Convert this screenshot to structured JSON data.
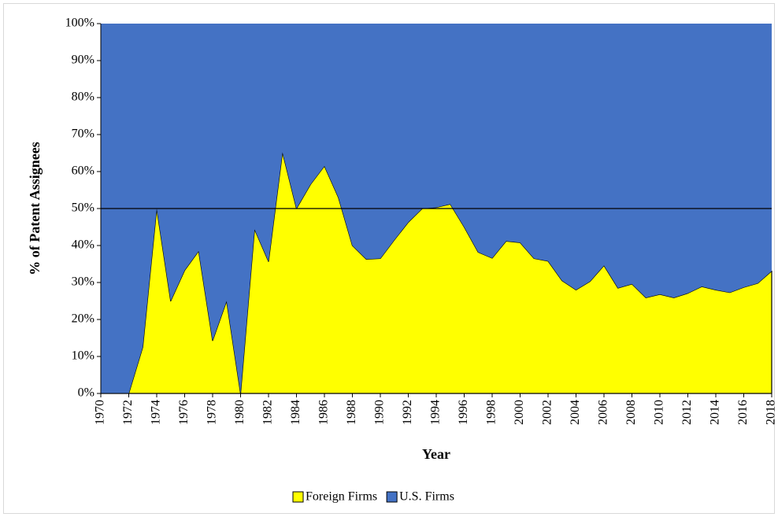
{
  "chart_data": {
    "type": "stacked_area",
    "x_label": "Year",
    "y_label": "% of Patent Assignees",
    "x": [
      1970,
      1971,
      1972,
      1973,
      1974,
      1975,
      1976,
      1977,
      1978,
      1979,
      1980,
      1981,
      1982,
      1983,
      1984,
      1985,
      1986,
      1987,
      1988,
      1989,
      1990,
      1991,
      1992,
      1993,
      1994,
      1995,
      1996,
      1997,
      1998,
      1999,
      2000,
      2001,
      2002,
      2003,
      2004,
      2005,
      2006,
      2007,
      2008,
      2009,
      2010,
      2011,
      2012,
      2013,
      2014,
      2015,
      2016,
      2017,
      2018
    ],
    "series": [
      {
        "name": "Foreign Firms",
        "color": "#ffff00",
        "values": [
          0,
          0,
          0,
          12.5,
          50,
          25,
          33.3,
          38.5,
          14.3,
          25,
          0,
          44.4,
          35.7,
          65.2,
          50,
          56.5,
          61.5,
          53,
          40,
          36.3,
          36.5,
          41.5,
          46.3,
          50,
          50.3,
          51.2,
          45,
          38.2,
          36.6,
          41.2,
          40.8,
          36.5,
          35.8,
          30.5,
          28,
          30.3,
          34.6,
          28.5,
          29.6,
          25.9,
          26.8,
          25.9,
          27.1,
          28.9,
          28,
          27.3,
          28.7,
          29.8,
          33.1
        ]
      },
      {
        "name": "U.S. Firms",
        "color": "#4472c4",
        "values": [
          100,
          100,
          100,
          87.5,
          50,
          75,
          66.7,
          61.5,
          85.7,
          75,
          100,
          55.6,
          64.3,
          34.8,
          50,
          43.5,
          38.5,
          47,
          60,
          63.7,
          63.5,
          58.5,
          53.7,
          50,
          49.7,
          48.8,
          55,
          61.8,
          63.4,
          58.8,
          59.2,
          63.5,
          64.2,
          69.5,
          72,
          69.7,
          65.4,
          71.5,
          70.4,
          74.1,
          73.2,
          74.1,
          72.9,
          71.1,
          72,
          72.7,
          71.3,
          70.2,
          66.9
        ]
      }
    ],
    "reference_line": 50,
    "xlim": [
      1970,
      2018
    ],
    "xticks": [
      1970,
      1972,
      1974,
      1976,
      1978,
      1980,
      1982,
      1984,
      1986,
      1988,
      1990,
      1992,
      1994,
      1996,
      1998,
      2000,
      2002,
      2004,
      2006,
      2008,
      2010,
      2012,
      2014,
      2016,
      2018
    ],
    "ylim": [
      0,
      100
    ],
    "yticks": [
      {
        "value": 0,
        "label": "0%"
      },
      {
        "value": 10,
        "label": "10%"
      },
      {
        "value": 20,
        "label": "20%"
      },
      {
        "value": 30,
        "label": "30%"
      },
      {
        "value": 40,
        "label": "40%"
      },
      {
        "value": 50,
        "label": "50%"
      },
      {
        "value": 60,
        "label": "60%"
      },
      {
        "value": 70,
        "label": "70%"
      },
      {
        "value": 80,
        "label": "80%"
      },
      {
        "value": 90,
        "label": "90%"
      },
      {
        "value": 100,
        "label": "100%"
      }
    ],
    "legend": "bottom"
  }
}
